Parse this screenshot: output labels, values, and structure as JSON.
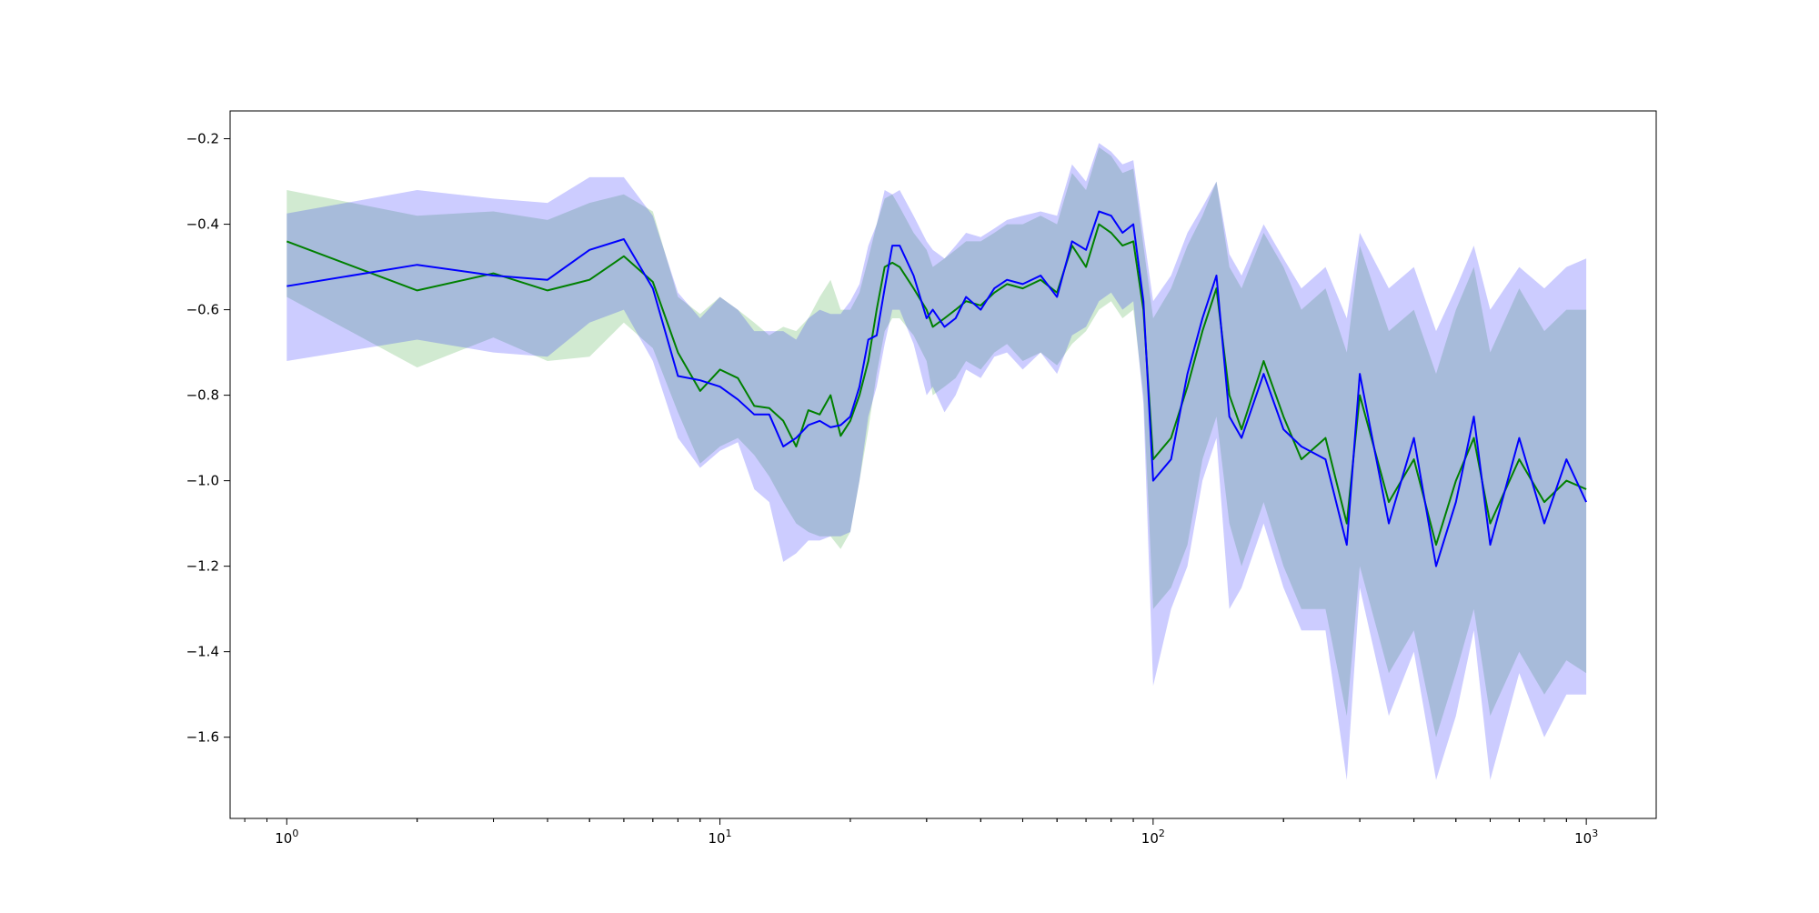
{
  "chart_data": {
    "type": "line",
    "title": "",
    "xlabel": "",
    "ylabel": "",
    "xscale": "log",
    "xlim": [
      0.74,
      1450
    ],
    "ylim": [
      -1.79,
      -0.135
    ],
    "grid": false,
    "legend": "none",
    "x_ticks": [
      {
        "value": 1,
        "base": "10",
        "exp": "0"
      },
      {
        "value": 10,
        "base": "10",
        "exp": "1"
      },
      {
        "value": 100,
        "base": "10",
        "exp": "2"
      },
      {
        "value": 1000,
        "base": "10",
        "exp": "3"
      }
    ],
    "y_ticks": [
      {
        "value": -0.2,
        "label": "−0.2"
      },
      {
        "value": -0.4,
        "label": "−0.4"
      },
      {
        "value": -0.6,
        "label": "−0.6"
      },
      {
        "value": -0.8,
        "label": "−0.8"
      },
      {
        "value": -1.0,
        "label": "−1.0"
      },
      {
        "value": -1.2,
        "label": "−1.2"
      },
      {
        "value": -1.4,
        "label": "−1.4"
      },
      {
        "value": -1.6,
        "label": "−1.6"
      }
    ],
    "series": [
      {
        "color": "#008000",
        "band_color": "#2ca02c",
        "band_opacity": 0.22,
        "x": [
          1,
          2,
          3,
          4,
          5,
          6,
          7,
          8,
          9,
          10,
          11,
          12,
          13,
          14,
          15,
          16,
          17,
          18,
          19,
          20,
          21,
          22,
          23,
          24,
          25,
          26,
          28,
          30,
          31,
          33,
          35,
          37,
          40,
          43,
          46,
          50,
          55,
          60,
          65,
          70,
          75,
          80,
          85,
          90,
          95,
          100,
          110,
          120,
          130,
          140,
          150,
          160,
          180,
          200,
          220,
          250,
          280,
          300,
          350,
          400,
          450,
          500,
          550,
          600,
          700,
          800,
          900,
          1000
        ],
        "y": [
          -0.44,
          -0.555,
          -0.515,
          -0.555,
          -0.53,
          -0.475,
          -0.535,
          -0.7,
          -0.79,
          -0.74,
          -0.76,
          -0.825,
          -0.83,
          -0.86,
          -0.92,
          -0.835,
          -0.845,
          -0.8,
          -0.895,
          -0.86,
          -0.8,
          -0.72,
          -0.6,
          -0.5,
          -0.49,
          -0.5,
          -0.55,
          -0.6,
          -0.64,
          -0.62,
          -0.6,
          -0.58,
          -0.59,
          -0.56,
          -0.54,
          -0.55,
          -0.53,
          -0.56,
          -0.45,
          -0.5,
          -0.4,
          -0.42,
          -0.45,
          -0.44,
          -0.6,
          -0.95,
          -0.9,
          -0.78,
          -0.65,
          -0.55,
          -0.8,
          -0.88,
          -0.72,
          -0.85,
          -0.95,
          -0.9,
          -1.1,
          -0.8,
          -1.05,
          -0.95,
          -1.15,
          -1.0,
          -0.9,
          -1.1,
          -0.95,
          -1.05,
          -1.0,
          -1.02
        ],
        "lower": [
          -0.57,
          -0.735,
          -0.665,
          -0.72,
          -0.71,
          -0.63,
          -0.69,
          -0.84,
          -0.96,
          -0.92,
          -0.9,
          -0.94,
          -0.99,
          -1.05,
          -1.1,
          -1.12,
          -1.13,
          -1.13,
          -1.16,
          -1.12,
          -1.0,
          -0.88,
          -0.75,
          -0.65,
          -0.62,
          -0.62,
          -0.66,
          -0.72,
          -0.8,
          -0.78,
          -0.76,
          -0.72,
          -0.74,
          -0.7,
          -0.68,
          -0.72,
          -0.7,
          -0.73,
          -0.68,
          -0.65,
          -0.6,
          -0.58,
          -0.62,
          -0.6,
          -0.8,
          -1.3,
          -1.25,
          -1.15,
          -0.95,
          -0.85,
          -1.1,
          -1.2,
          -1.05,
          -1.2,
          -1.3,
          -1.3,
          -1.55,
          -1.2,
          -1.45,
          -1.35,
          -1.6,
          -1.45,
          -1.3,
          -1.55,
          -1.4,
          -1.5,
          -1.42,
          -1.45
        ],
        "upper": [
          -0.32,
          -0.38,
          -0.37,
          -0.39,
          -0.35,
          -0.33,
          -0.37,
          -0.57,
          -0.61,
          -0.57,
          -0.6,
          -0.63,
          -0.66,
          -0.64,
          -0.65,
          -0.62,
          -0.57,
          -0.53,
          -0.6,
          -0.6,
          -0.56,
          -0.48,
          -0.4,
          -0.34,
          -0.33,
          -0.36,
          -0.42,
          -0.46,
          -0.5,
          -0.48,
          -0.46,
          -0.44,
          -0.44,
          -0.42,
          -0.4,
          -0.4,
          -0.38,
          -0.4,
          -0.28,
          -0.32,
          -0.22,
          -0.24,
          -0.28,
          -0.27,
          -0.45,
          -0.62,
          -0.55,
          -0.45,
          -0.38,
          -0.3,
          -0.5,
          -0.55,
          -0.42,
          -0.5,
          -0.6,
          -0.55,
          -0.7,
          -0.45,
          -0.65,
          -0.6,
          -0.75,
          -0.6,
          -0.5,
          -0.7,
          -0.55,
          -0.65,
          -0.6,
          -0.6
        ]
      },
      {
        "color": "#0000ff",
        "band_color": "#0000ff",
        "band_opacity": 0.2,
        "x": [
          1,
          2,
          3,
          4,
          5,
          6,
          7,
          8,
          9,
          10,
          11,
          12,
          13,
          14,
          15,
          16,
          17,
          18,
          19,
          20,
          21,
          22,
          23,
          24,
          25,
          26,
          28,
          30,
          31,
          33,
          35,
          37,
          40,
          43,
          46,
          50,
          55,
          60,
          65,
          70,
          75,
          80,
          85,
          90,
          95,
          100,
          110,
          120,
          130,
          140,
          150,
          160,
          180,
          200,
          220,
          250,
          280,
          300,
          350,
          400,
          450,
          500,
          550,
          600,
          700,
          800,
          900,
          1000
        ],
        "y": [
          -0.545,
          -0.495,
          -0.52,
          -0.53,
          -0.46,
          -0.435,
          -0.55,
          -0.755,
          -0.765,
          -0.78,
          -0.81,
          -0.845,
          -0.845,
          -0.92,
          -0.9,
          -0.87,
          -0.86,
          -0.875,
          -0.87,
          -0.85,
          -0.78,
          -0.67,
          -0.66,
          -0.55,
          -0.45,
          -0.45,
          -0.52,
          -0.62,
          -0.6,
          -0.64,
          -0.62,
          -0.57,
          -0.6,
          -0.55,
          -0.53,
          -0.54,
          -0.52,
          -0.57,
          -0.44,
          -0.46,
          -0.37,
          -0.38,
          -0.42,
          -0.4,
          -0.58,
          -1.0,
          -0.95,
          -0.75,
          -0.62,
          -0.52,
          -0.85,
          -0.9,
          -0.75,
          -0.88,
          -0.92,
          -0.95,
          -1.15,
          -0.75,
          -1.1,
          -0.9,
          -1.2,
          -1.05,
          -0.85,
          -1.15,
          -0.9,
          -1.1,
          -0.95,
          -1.05
        ],
        "lower": [
          -0.72,
          -0.67,
          -0.7,
          -0.71,
          -0.63,
          -0.6,
          -0.72,
          -0.9,
          -0.97,
          -0.93,
          -0.91,
          -1.02,
          -1.05,
          -1.19,
          -1.17,
          -1.14,
          -1.14,
          -1.13,
          -1.13,
          -1.12,
          -1.0,
          -0.85,
          -0.78,
          -0.68,
          -0.6,
          -0.6,
          -0.68,
          -0.8,
          -0.78,
          -0.84,
          -0.8,
          -0.74,
          -0.76,
          -0.71,
          -0.7,
          -0.74,
          -0.7,
          -0.75,
          -0.66,
          -0.64,
          -0.58,
          -0.56,
          -0.6,
          -0.58,
          -0.82,
          -1.48,
          -1.3,
          -1.2,
          -1.0,
          -0.9,
          -1.3,
          -1.25,
          -1.1,
          -1.25,
          -1.35,
          -1.35,
          -1.7,
          -1.25,
          -1.55,
          -1.4,
          -1.7,
          -1.55,
          -1.35,
          -1.7,
          -1.45,
          -1.6,
          -1.5,
          -1.5
        ],
        "upper": [
          -0.375,
          -0.32,
          -0.34,
          -0.35,
          -0.29,
          -0.29,
          -0.38,
          -0.56,
          -0.62,
          -0.57,
          -0.6,
          -0.65,
          -0.65,
          -0.65,
          -0.67,
          -0.62,
          -0.6,
          -0.61,
          -0.61,
          -0.58,
          -0.54,
          -0.45,
          -0.4,
          -0.32,
          -0.33,
          -0.32,
          -0.38,
          -0.44,
          -0.46,
          -0.48,
          -0.45,
          -0.42,
          -0.43,
          -0.41,
          -0.39,
          -0.38,
          -0.37,
          -0.38,
          -0.26,
          -0.3,
          -0.21,
          -0.23,
          -0.26,
          -0.25,
          -0.42,
          -0.58,
          -0.52,
          -0.42,
          -0.36,
          -0.3,
          -0.47,
          -0.52,
          -0.4,
          -0.48,
          -0.55,
          -0.5,
          -0.62,
          -0.42,
          -0.55,
          -0.5,
          -0.65,
          -0.55,
          -0.45,
          -0.6,
          -0.5,
          -0.55,
          -0.5,
          -0.48
        ]
      }
    ]
  }
}
